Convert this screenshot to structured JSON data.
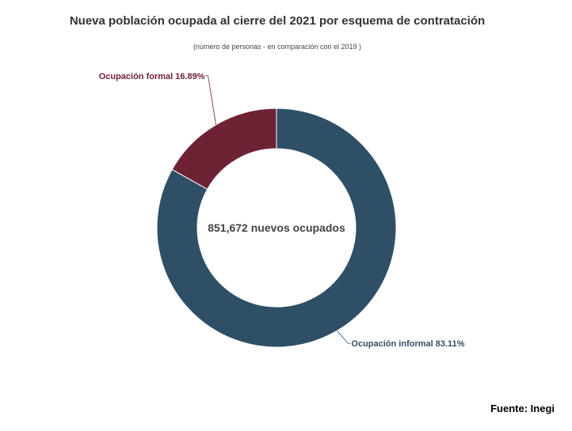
{
  "chart_data": {
    "type": "pie",
    "title": "Nueva población ocupada al cierre del 2021 por esquema de contratación",
    "subtitle": "(número de personas - en comparación con el 2019 )",
    "center_label": "851,672 nuevos ocupados",
    "source": "Fuente: Inegi",
    "slices": [
      {
        "name": "Ocupación informal",
        "value": 83.11,
        "label": "Ocupación informal 83.11%",
        "color": "#2f4f67"
      },
      {
        "name": "Ocupación formal",
        "value": 16.89,
        "label": "Ocupación formal 16.89%",
        "color": "#6e2334"
      }
    ]
  }
}
